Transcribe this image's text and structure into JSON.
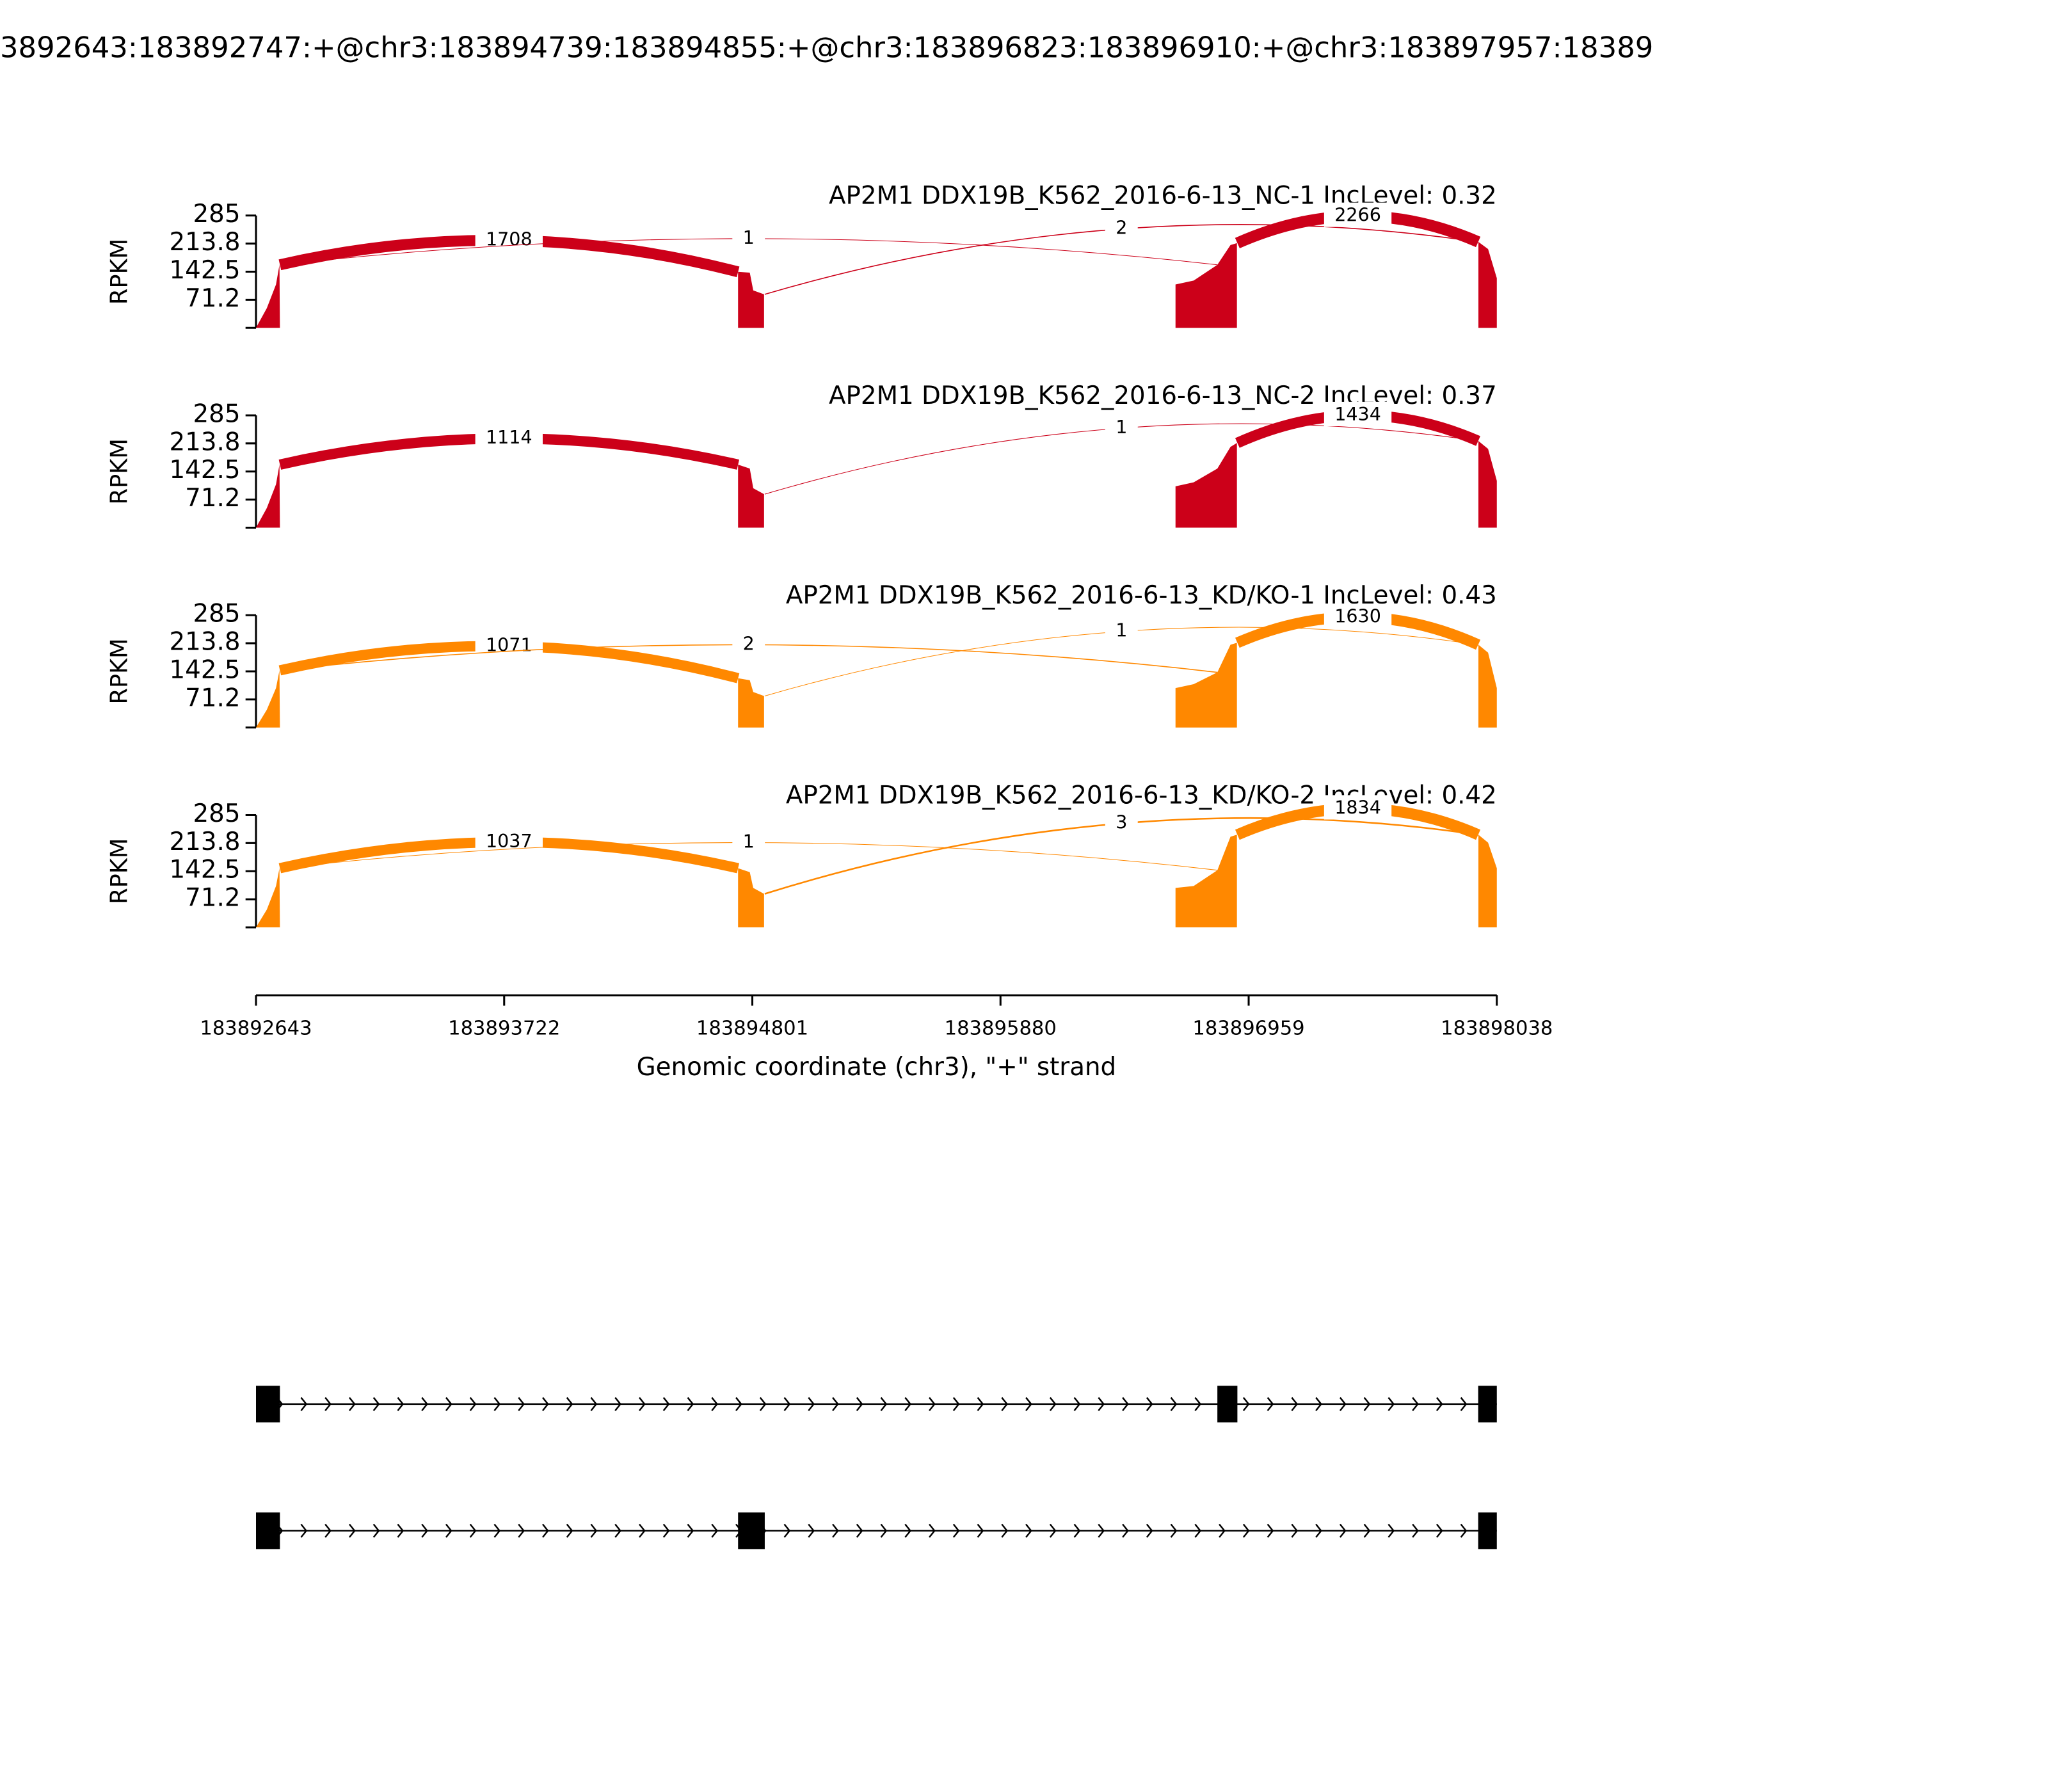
{
  "chart_data": {
    "type": "sashimi",
    "title": "3892643:183892747:+@chr3:183894739:183894855:+@chr3:183896823:183896910:+@chr3:183897957:18389",
    "ylabel": "RPKM",
    "xlabel": "Genomic coordinate (chr3), \"+\" strand",
    "xlim": [
      183892643,
      183898038
    ],
    "xticks": [
      183892643,
      183893722,
      183894801,
      183895880,
      183896959,
      183898038
    ],
    "ylim": [
      0,
      285
    ],
    "yticks": [
      71.2,
      142.5,
      213.8,
      285
    ],
    "coverage_x": [
      183892643,
      183892690,
      183892730,
      183892745,
      183892747,
      null,
      183894739,
      183894739,
      183894790,
      183894805,
      183894852,
      183894852,
      null,
      183896641,
      183896641,
      183896720,
      183896823,
      183896880,
      183896908,
      183896908,
      null,
      183897958,
      183897958,
      183898000,
      183898038,
      183898038
    ],
    "junctions": [
      {
        "start": 183892747,
        "end": 183894739
      },
      {
        "start": 183892747,
        "end": 183896823
      },
      {
        "start": 183894855,
        "end": 183897957
      },
      {
        "start": 183896910,
        "end": 183897957
      }
    ],
    "tracks": [
      {
        "label": "AP2M1 DDX19B_K562_2016-6-13_NC-1 IncLevel: 0.32",
        "color": "#cc0019",
        "coverage": [
          0,
          50,
          110,
          160,
          0,
          null,
          0,
          142,
          140,
          95,
          85,
          0,
          null,
          0,
          110,
          120,
          160,
          210,
          215,
          0,
          null,
          0,
          218,
          200,
          126,
          0
        ],
        "junction_counts": [
          1708,
          1,
          2,
          2266
        ]
      },
      {
        "label": "AP2M1 DDX19B_K562_2016-6-13_NC-2 IncLevel: 0.37",
        "color": "#cc0019",
        "coverage": [
          0,
          50,
          110,
          160,
          0,
          null,
          0,
          160,
          150,
          100,
          85,
          0,
          null,
          0,
          105,
          115,
          150,
          205,
          215,
          0,
          null,
          0,
          220,
          200,
          119,
          0
        ],
        "junction_counts": [
          1114,
          null,
          1,
          1434
        ]
      },
      {
        "label": "AP2M1 DDX19B_K562_2016-6-13_KD/KO-1 IncLevel: 0.43",
        "color": "#ff8800",
        "coverage": [
          0,
          45,
          100,
          145,
          0,
          null,
          0,
          125,
          120,
          90,
          80,
          0,
          null,
          0,
          100,
          110,
          140,
          210,
          215,
          0,
          null,
          0,
          210,
          190,
          100,
          0
        ],
        "junction_counts": [
          1071,
          2,
          1,
          1630
        ]
      },
      {
        "label": "AP2M1 DDX19B_K562_2016-6-13_KD/KO-2 IncLevel: 0.42",
        "color": "#ff8800",
        "coverage": [
          0,
          45,
          105,
          150,
          0,
          null,
          0,
          150,
          140,
          100,
          85,
          0,
          null,
          0,
          100,
          105,
          145,
          230,
          235,
          0,
          null,
          0,
          235,
          215,
          150,
          0
        ],
        "junction_counts": [
          1037,
          1,
          3,
          1834
        ]
      }
    ],
    "transcripts": [
      [
        [
          183892643,
          183892747
        ],
        [
          183896823,
          183896910
        ],
        [
          183897957,
          183898038
        ]
      ],
      [
        [
          183892643,
          183892747
        ],
        [
          183894739,
          183894855
        ],
        [
          183897957,
          183898038
        ]
      ]
    ]
  }
}
